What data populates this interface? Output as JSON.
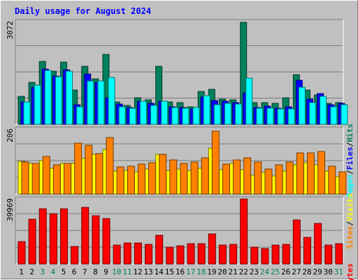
{
  "chart_data": {
    "type": "bar",
    "title": "Daily usage for August 2024",
    "categories": [
      "1",
      "2",
      "3",
      "4",
      "5",
      "6",
      "7",
      "8",
      "9",
      "10",
      "11",
      "12",
      "13",
      "14",
      "15",
      "16",
      "17",
      "18",
      "19",
      "20",
      "21",
      "22",
      "23",
      "24",
      "25",
      "26",
      "27",
      "28",
      "29",
      "30",
      "31"
    ],
    "weekend_days": [
      "3",
      "4",
      "10",
      "11",
      "17",
      "18",
      "24",
      "25",
      "31"
    ],
    "panels": [
      {
        "name": "hits-files-pages",
        "max_label": "3072",
        "ylim": [
          0,
          3072
        ],
        "legend": [
          "Pages",
          "/",
          "Files",
          "/",
          "Hits"
        ],
        "series": [
          {
            "name": "Hits",
            "color": "#00805c",
            "values": [
              840,
              1250,
              1870,
              1580,
              1840,
              1020,
              1730,
              1350,
              2080,
              670,
              570,
              780,
              720,
              1730,
              670,
              640,
              520,
              980,
              1030,
              750,
              730,
              3040,
              650,
              640,
              630,
              780,
              1480,
              1020,
              870,
              630,
              650
            ]
          },
          {
            "name": "Files",
            "color": "#0000ff",
            "values": [
              660,
              1100,
              1640,
              1440,
              1620,
              580,
              1500,
              1250,
              780,
              600,
              500,
              690,
              620,
              690,
              520,
              500,
              460,
              810,
              700,
              680,
              650,
              940,
              500,
              530,
              480,
              520,
              1300,
              750,
              920,
              590,
              620
            ]
          },
          {
            "name": "Pages",
            "color": "#00ffff",
            "values": [
              670,
              1160,
              1600,
              1420,
              1570,
              520,
              1290,
              1290,
              1390,
              510,
              470,
              680,
              570,
              680,
              490,
              470,
              500,
              850,
              580,
              630,
              610,
              1370,
              470,
              480,
              460,
              460,
              1090,
              650,
              840,
              520,
              580
            ]
          }
        ]
      },
      {
        "name": "visits-sites",
        "max_label": "206",
        "ylim": [
          0,
          206
        ],
        "legend": [
          "Sites",
          "/",
          "Visits"
        ],
        "series": [
          {
            "name": "Visits",
            "color": "#ffff00",
            "values": [
              104,
              97,
              106,
              80,
              97,
              97,
              111,
              125,
              140,
              72,
              74,
              71,
              79,
              126,
              74,
              79,
              74,
              80,
              145,
              77,
              97,
              76,
              60,
              67,
              57,
              72,
              93,
              98,
              93,
              72,
              55
            ]
          },
          {
            "name": "Sites",
            "color": "#ff8000",
            "values": [
              100,
              97,
              119,
              91,
              97,
              161,
              153,
              127,
              177,
              86,
              87,
              95,
              98,
              126,
              107,
              97,
              101,
              113,
              198,
              95,
              107,
              113,
              100,
              79,
              93,
              100,
              129,
              130,
              133,
              87,
              70
            ]
          }
        ]
      },
      {
        "name": "kbytes",
        "max_label": "39969",
        "ylim": [
          0,
          39969
        ],
        "legend": [
          "KBytes"
        ],
        "series": [
          {
            "name": "KBytes",
            "color": "#ff0000",
            "values": [
              13800,
              27100,
              33400,
              30500,
              33400,
              10500,
              34600,
              29200,
              27800,
              11300,
              12600,
              12900,
              11900,
              17400,
              10400,
              10900,
              12400,
              12400,
              18300,
              11400,
              11900,
              39600,
              10400,
              9400,
              11400,
              11900,
              26800,
              16200,
              24600,
              11400,
              12400
            ]
          }
        ]
      }
    ],
    "colors": {
      "background": "#c0c0c0",
      "title": "#0000ff",
      "weekday_label": "#000000",
      "weekend_label": "#00805c",
      "grid": "#7a7a7a"
    }
  }
}
